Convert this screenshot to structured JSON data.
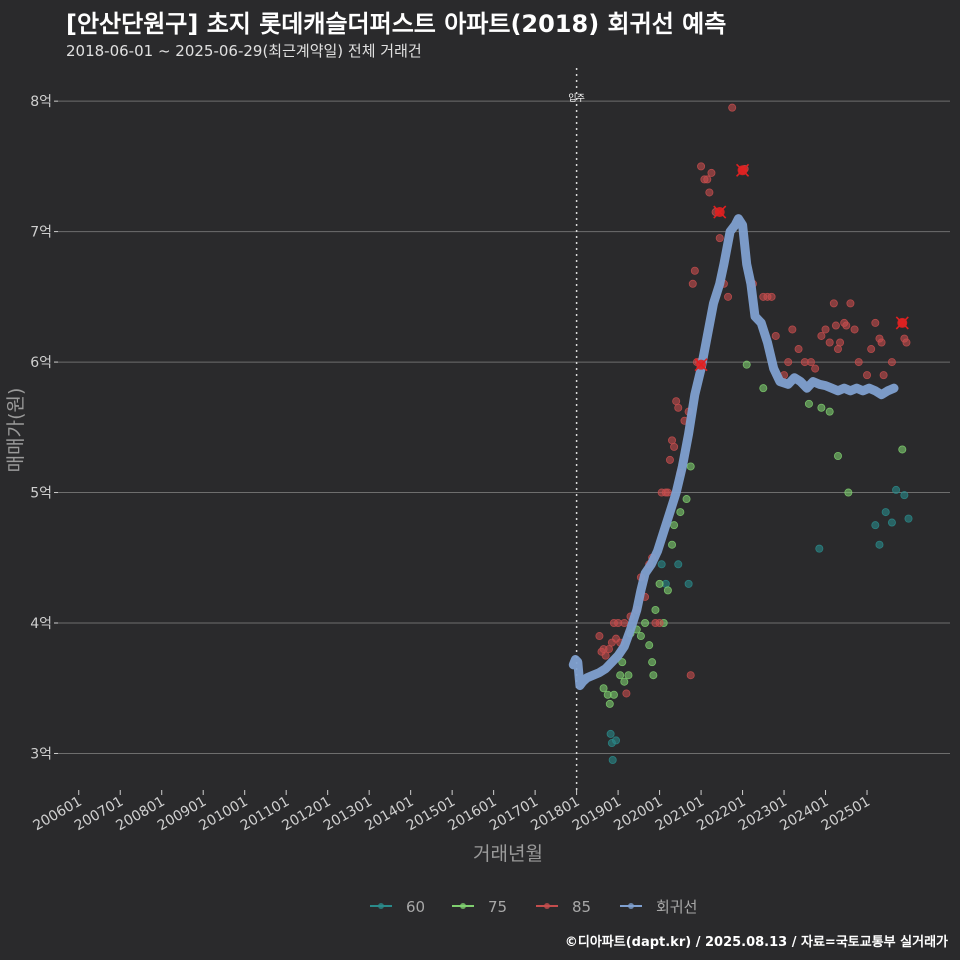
{
  "title": "[안산단원구] 초지 롯데캐슬더퍼스트 아파트(2018) 회귀선 예측",
  "subtitle": "2018-06-01 ~ 2025-06-29(최근계약일) 전체 거래건",
  "footer": "©디아파트(dapt.kr) / 2025.08.13 / 자료=국토교통부 실거래가",
  "chart_data": {
    "type": "scatter",
    "xlabel": "거래년월",
    "ylabel": "매매가(원)",
    "xlim": [
      2005.5,
      2027.0
    ],
    "ylim": [
      2.72,
      8.3
    ],
    "y_ticks": [
      {
        "value": 3,
        "label": "3억"
      },
      {
        "value": 4,
        "label": "4억"
      },
      {
        "value": 5,
        "label": "5억"
      },
      {
        "value": 6,
        "label": "6억"
      },
      {
        "value": 7,
        "label": "7억"
      },
      {
        "value": 8,
        "label": "8억"
      }
    ],
    "x_ticks": [
      {
        "value": 2006,
        "label": "200601"
      },
      {
        "value": 2007,
        "label": "200701"
      },
      {
        "value": 2008,
        "label": "200801"
      },
      {
        "value": 2009,
        "label": "200901"
      },
      {
        "value": 2010,
        "label": "201001"
      },
      {
        "value": 2011,
        "label": "201101"
      },
      {
        "value": 2012,
        "label": "201201"
      },
      {
        "value": 2013,
        "label": "201301"
      },
      {
        "value": 2014,
        "label": "201401"
      },
      {
        "value": 2015,
        "label": "201501"
      },
      {
        "value": 2016,
        "label": "201601"
      },
      {
        "value": 2017,
        "label": "201701"
      },
      {
        "value": 2018,
        "label": "201801"
      },
      {
        "value": 2019,
        "label": "201901"
      },
      {
        "value": 2020,
        "label": "202001"
      },
      {
        "value": 2021,
        "label": "202101"
      },
      {
        "value": 2022,
        "label": "202201"
      },
      {
        "value": 2023,
        "label": "202301"
      },
      {
        "value": 2024,
        "label": "202401"
      },
      {
        "value": 2025,
        "label": "202501"
      }
    ],
    "vline": {
      "x": 2018.0,
      "label": "입주"
    },
    "grid": "horizontal",
    "legend_position": "bottom",
    "series": [
      {
        "name": "60",
        "color": "#2a8a8a",
        "points": [
          [
            2018.82,
            3.15
          ],
          [
            2018.85,
            3.08
          ],
          [
            2018.87,
            2.95
          ],
          [
            2018.95,
            3.1
          ],
          [
            2020.05,
            4.45
          ],
          [
            2020.15,
            4.3
          ],
          [
            2020.45,
            4.45
          ],
          [
            2020.7,
            4.3
          ],
          [
            2023.85,
            4.57
          ],
          [
            2025.2,
            4.75
          ],
          [
            2025.3,
            4.6
          ],
          [
            2025.45,
            4.85
          ],
          [
            2025.6,
            4.77
          ],
          [
            2025.7,
            5.02
          ],
          [
            2025.9,
            4.98
          ],
          [
            2026.0,
            4.8
          ]
        ]
      },
      {
        "name": "75",
        "color": "#7fcf6f",
        "points": [
          [
            2018.65,
            3.5
          ],
          [
            2018.75,
            3.45
          ],
          [
            2018.8,
            3.38
          ],
          [
            2018.9,
            3.45
          ],
          [
            2019.05,
            3.6
          ],
          [
            2019.1,
            3.7
          ],
          [
            2019.15,
            3.55
          ],
          [
            2019.25,
            3.6
          ],
          [
            2019.3,
            3.92
          ],
          [
            2019.45,
            3.95
          ],
          [
            2019.55,
            3.9
          ],
          [
            2019.65,
            4.0
          ],
          [
            2019.75,
            3.83
          ],
          [
            2019.82,
            3.7
          ],
          [
            2019.85,
            3.6
          ],
          [
            2019.9,
            4.1
          ],
          [
            2020.0,
            4.3
          ],
          [
            2020.1,
            4.0
          ],
          [
            2020.2,
            4.25
          ],
          [
            2020.3,
            4.6
          ],
          [
            2020.35,
            4.75
          ],
          [
            2020.5,
            4.85
          ],
          [
            2020.65,
            4.95
          ],
          [
            2020.75,
            5.2
          ],
          [
            2022.1,
            5.98
          ],
          [
            2022.5,
            5.8
          ],
          [
            2023.6,
            5.68
          ],
          [
            2023.9,
            5.65
          ],
          [
            2024.1,
            5.62
          ],
          [
            2024.3,
            5.28
          ],
          [
            2024.55,
            5.0
          ],
          [
            2025.85,
            5.33
          ]
        ]
      },
      {
        "name": "85",
        "color": "#c44d4d",
        "points": [
          [
            2018.55,
            3.9
          ],
          [
            2018.6,
            3.78
          ],
          [
            2018.65,
            3.8
          ],
          [
            2018.7,
            3.75
          ],
          [
            2018.78,
            3.8
          ],
          [
            2018.85,
            3.85
          ],
          [
            2018.9,
            4.0
          ],
          [
            2018.95,
            3.88
          ],
          [
            2019.0,
            4.0
          ],
          [
            2019.05,
            3.85
          ],
          [
            2019.15,
            4.0
          ],
          [
            2019.2,
            3.46
          ],
          [
            2019.3,
            4.05
          ],
          [
            2019.45,
            4.1
          ],
          [
            2019.55,
            4.35
          ],
          [
            2019.65,
            4.2
          ],
          [
            2019.75,
            4.45
          ],
          [
            2019.82,
            4.5
          ],
          [
            2019.9,
            4.0
          ],
          [
            2020.0,
            4.0
          ],
          [
            2020.05,
            5.0
          ],
          [
            2020.15,
            5.0
          ],
          [
            2020.2,
            5.0
          ],
          [
            2020.25,
            5.25
          ],
          [
            2020.3,
            5.4
          ],
          [
            2020.35,
            5.35
          ],
          [
            2020.4,
            5.7
          ],
          [
            2020.45,
            5.65
          ],
          [
            2020.5,
            5.15
          ],
          [
            2020.6,
            5.55
          ],
          [
            2020.7,
            5.62
          ],
          [
            2020.75,
            3.6
          ],
          [
            2020.8,
            6.6
          ],
          [
            2020.85,
            6.7
          ],
          [
            2020.9,
            6.0
          ],
          [
            2020.95,
            6.0
          ],
          [
            2021.0,
            7.5
          ],
          [
            2021.08,
            7.4
          ],
          [
            2021.15,
            7.4
          ],
          [
            2021.2,
            7.3
          ],
          [
            2021.25,
            7.45
          ],
          [
            2021.35,
            7.15
          ],
          [
            2021.45,
            6.95
          ],
          [
            2021.55,
            6.6
          ],
          [
            2021.65,
            6.5
          ],
          [
            2021.75,
            7.95
          ],
          [
            2022.0,
            7.47
          ],
          [
            2022.05,
            7.48
          ],
          [
            2022.25,
            6.6
          ],
          [
            2022.5,
            6.5
          ],
          [
            2022.6,
            6.5
          ],
          [
            2022.7,
            6.5
          ],
          [
            2022.8,
            6.2
          ],
          [
            2023.0,
            5.9
          ],
          [
            2023.1,
            6.0
          ],
          [
            2023.2,
            6.25
          ],
          [
            2023.35,
            6.1
          ],
          [
            2023.5,
            6.0
          ],
          [
            2023.65,
            6.0
          ],
          [
            2023.75,
            5.95
          ],
          [
            2023.9,
            6.2
          ],
          [
            2024.0,
            6.25
          ],
          [
            2024.1,
            6.15
          ],
          [
            2024.2,
            6.45
          ],
          [
            2024.25,
            6.28
          ],
          [
            2024.3,
            6.1
          ],
          [
            2024.35,
            6.15
          ],
          [
            2024.45,
            6.3
          ],
          [
            2024.5,
            6.28
          ],
          [
            2024.6,
            6.45
          ],
          [
            2024.7,
            6.25
          ],
          [
            2024.8,
            6.0
          ],
          [
            2025.0,
            5.9
          ],
          [
            2025.1,
            6.1
          ],
          [
            2025.2,
            6.3
          ],
          [
            2025.3,
            6.18
          ],
          [
            2025.35,
            6.15
          ],
          [
            2025.4,
            5.9
          ],
          [
            2025.6,
            6.0
          ],
          [
            2025.85,
            6.3
          ],
          [
            2025.9,
            6.18
          ],
          [
            2025.95,
            6.15
          ]
        ]
      },
      {
        "name": "회귀선",
        "color": "#7fa0d0",
        "line": [
          [
            2017.92,
            3.68
          ],
          [
            2017.97,
            3.72
          ],
          [
            2018.03,
            3.7
          ],
          [
            2018.08,
            3.52
          ],
          [
            2018.15,
            3.55
          ],
          [
            2018.25,
            3.58
          ],
          [
            2018.4,
            3.6
          ],
          [
            2018.55,
            3.62
          ],
          [
            2018.7,
            3.65
          ],
          [
            2018.85,
            3.7
          ],
          [
            2019.0,
            3.75
          ],
          [
            2019.15,
            3.82
          ],
          [
            2019.3,
            3.95
          ],
          [
            2019.45,
            4.1
          ],
          [
            2019.55,
            4.25
          ],
          [
            2019.65,
            4.38
          ],
          [
            2019.8,
            4.45
          ],
          [
            2019.95,
            4.55
          ],
          [
            2020.1,
            4.7
          ],
          [
            2020.25,
            4.85
          ],
          [
            2020.4,
            5.0
          ],
          [
            2020.55,
            5.2
          ],
          [
            2020.7,
            5.45
          ],
          [
            2020.85,
            5.75
          ],
          [
            2021.0,
            5.95
          ],
          [
            2021.15,
            6.2
          ],
          [
            2021.3,
            6.45
          ],
          [
            2021.45,
            6.6
          ],
          [
            2021.55,
            6.75
          ],
          [
            2021.7,
            7.0
          ],
          [
            2021.82,
            7.05
          ],
          [
            2021.9,
            7.1
          ],
          [
            2022.0,
            7.05
          ],
          [
            2022.1,
            6.75
          ],
          [
            2022.2,
            6.6
          ],
          [
            2022.3,
            6.35
          ],
          [
            2022.45,
            6.3
          ],
          [
            2022.6,
            6.15
          ],
          [
            2022.75,
            5.95
          ],
          [
            2022.9,
            5.85
          ],
          [
            2023.1,
            5.83
          ],
          [
            2023.25,
            5.88
          ],
          [
            2023.4,
            5.85
          ],
          [
            2023.55,
            5.8
          ],
          [
            2023.7,
            5.85
          ],
          [
            2023.85,
            5.83
          ],
          [
            2024.0,
            5.82
          ],
          [
            2024.15,
            5.8
          ],
          [
            2024.3,
            5.78
          ],
          [
            2024.45,
            5.8
          ],
          [
            2024.6,
            5.78
          ],
          [
            2024.75,
            5.8
          ],
          [
            2024.9,
            5.78
          ],
          [
            2025.05,
            5.8
          ],
          [
            2025.2,
            5.78
          ],
          [
            2025.35,
            5.75
          ],
          [
            2025.5,
            5.78
          ],
          [
            2025.65,
            5.8
          ]
        ]
      }
    ],
    "highlights": [
      [
        2021.0,
        5.98
      ],
      [
        2021.45,
        7.15
      ],
      [
        2022.0,
        7.47
      ],
      [
        2025.85,
        6.3
      ]
    ]
  }
}
